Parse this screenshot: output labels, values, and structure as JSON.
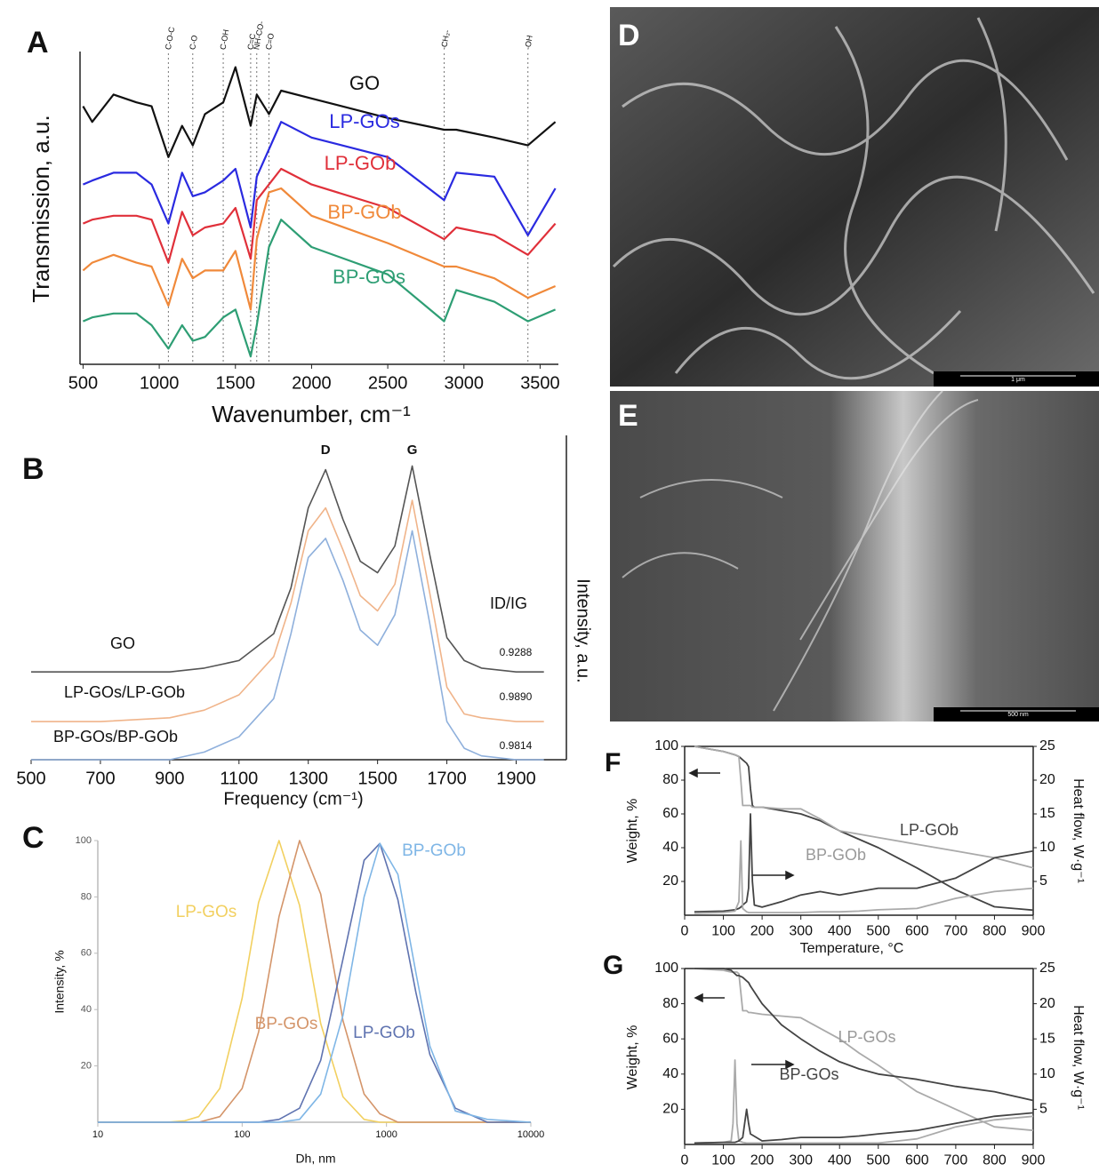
{
  "chart_data": [
    {
      "panel": "A",
      "type": "line",
      "xlabel": "Wavenumber, cm⁻¹",
      "ylabel": "Transmission, a.u.",
      "x": [
        500,
        560,
        700,
        850,
        950,
        1060,
        1150,
        1220,
        1300,
        1420,
        1500,
        1600,
        1640,
        1720,
        1800,
        2000,
        2500,
        2870,
        2950,
        3200,
        3420,
        3600
      ],
      "xlim": [
        480,
        3620
      ],
      "xticks": [
        500,
        1000,
        1500,
        2000,
        2500,
        3000,
        3500
      ],
      "ylim": [
        2,
        10
      ],
      "bands": [
        {
          "x": 1060,
          "label": "C-O-C"
        },
        {
          "x": 1220,
          "label": "C-O"
        },
        {
          "x": 1420,
          "label": "C-OH"
        },
        {
          "x": 1600,
          "label": "C=C"
        },
        {
          "x": 1640,
          "label": "NH-CO-"
        },
        {
          "x": 1720,
          "label": "C=O"
        },
        {
          "x": 2870,
          "label": "-CH₂-"
        },
        {
          "x": 3420,
          "label": "-OH"
        }
      ],
      "series": [
        {
          "name": "GO",
          "color": "#111111",
          "values": [
            8.6,
            8.2,
            8.9,
            8.7,
            8.6,
            7.3,
            8.1,
            7.6,
            8.4,
            8.7,
            9.6,
            8.1,
            8.9,
            8.4,
            9.0,
            8.8,
            8.3,
            8.0,
            8.0,
            7.8,
            7.6,
            8.2
          ]
        },
        {
          "name": "LP-GOs",
          "color": "#2a2ae0",
          "values": [
            6.6,
            6.7,
            6.9,
            6.9,
            6.6,
            5.6,
            6.9,
            6.3,
            6.4,
            6.7,
            7.0,
            5.5,
            6.8,
            7.5,
            8.2,
            7.8,
            7.3,
            6.2,
            6.9,
            6.8,
            5.3,
            6.5
          ]
        },
        {
          "name": "LP-GOb",
          "color": "#e0303a",
          "values": [
            5.6,
            5.7,
            5.8,
            5.8,
            5.7,
            4.6,
            5.9,
            5.3,
            5.5,
            5.6,
            6.0,
            4.7,
            6.2,
            6.6,
            7.0,
            6.6,
            6.0,
            5.2,
            5.5,
            5.3,
            4.8,
            5.6
          ]
        },
        {
          "name": "BP-GOb",
          "color": "#f0893a",
          "values": [
            4.4,
            4.6,
            4.8,
            4.6,
            4.5,
            3.5,
            4.7,
            4.2,
            4.4,
            4.4,
            4.9,
            3.4,
            5.2,
            6.4,
            6.5,
            5.8,
            5.1,
            4.5,
            4.5,
            4.2,
            3.7,
            4.0
          ]
        },
        {
          "name": "BP-GOs",
          "color": "#2e9e74",
          "values": [
            3.1,
            3.2,
            3.3,
            3.3,
            3.0,
            2.4,
            3.0,
            2.6,
            2.7,
            3.2,
            3.4,
            2.2,
            3.0,
            5.0,
            5.7,
            5.0,
            4.3,
            3.1,
            3.9,
            3.6,
            3.1,
            3.4
          ]
        }
      ]
    },
    {
      "panel": "B",
      "type": "line",
      "xlabel": "Frequency (cm⁻¹)",
      "ylabel": "Intensity, a.u.",
      "x": [
        500,
        700,
        900,
        1000,
        1100,
        1200,
        1250,
        1300,
        1350,
        1400,
        1450,
        1500,
        1550,
        1600,
        1650,
        1700,
        1750,
        1800,
        1900,
        1980
      ],
      "xlim": [
        500,
        2045
      ],
      "xticks": [
        500,
        700,
        900,
        1100,
        1300,
        1500,
        1700,
        1900
      ],
      "ylim": [
        0,
        8.5
      ],
      "peaks": [
        {
          "x": 1350,
          "label": "D"
        },
        {
          "x": 1600,
          "label": "G"
        }
      ],
      "ratio_label": "ID/IG",
      "series": [
        {
          "name": "GO",
          "color": "#555555",
          "ratio": 0.9288,
          "values": [
            2.3,
            2.3,
            2.3,
            2.4,
            2.6,
            3.3,
            4.5,
            6.6,
            7.6,
            6.3,
            5.2,
            4.9,
            5.6,
            7.7,
            5.4,
            3.2,
            2.6,
            2.4,
            2.3,
            2.3
          ]
        },
        {
          "name": "LP-GOs/LP-GOb",
          "color": "#f0b48a",
          "ratio": {
            "value": 0.989,
            "label": "0.9890"
          },
          "values": [
            1.0,
            1.0,
            1.1,
            1.3,
            1.7,
            2.7,
            4.1,
            6.0,
            6.6,
            5.5,
            4.3,
            3.9,
            4.6,
            6.8,
            4.4,
            1.9,
            1.2,
            1.1,
            1.0,
            1.0
          ]
        },
        {
          "name": "BP-GOs/BP-GOb",
          "color": "#8fb0dc",
          "ratio": 0.9814,
          "values": [
            0.0,
            0.0,
            0.0,
            0.2,
            0.6,
            1.6,
            3.3,
            5.3,
            5.8,
            4.7,
            3.4,
            3.0,
            3.8,
            6.0,
            3.6,
            1.0,
            0.3,
            0.1,
            0.0,
            0.0
          ]
        }
      ]
    },
    {
      "panel": "C",
      "type": "line",
      "xlabel": "Dh, nm",
      "ylabel": "Intensity, %",
      "xscale": "log",
      "x": [
        10,
        30,
        40,
        50,
        70,
        100,
        130,
        180,
        250,
        350,
        500,
        700,
        900,
        1200,
        1600,
        2000,
        3000,
        5000,
        10000
      ],
      "xlim": [
        10,
        10000
      ],
      "xticks": [
        10,
        100,
        1000,
        10000
      ],
      "ylim": [
        0,
        100
      ],
      "yticks": [
        20,
        40,
        60,
        80,
        100
      ],
      "series": [
        {
          "name": "LP-GOs",
          "color": "#f2d060",
          "values": [
            0,
            0,
            0.5,
            2,
            12,
            44,
            78,
            100,
            77,
            35,
            9,
            1,
            0,
            0,
            0,
            0,
            0,
            0,
            0
          ]
        },
        {
          "name": "BP-GOs",
          "color": "#d4956a",
          "values": [
            0,
            0,
            0,
            0,
            2,
            12,
            32,
            73,
            100,
            81,
            36,
            10,
            3,
            0,
            0,
            0,
            0,
            0,
            0
          ]
        },
        {
          "name": "LP-GOb",
          "color": "#5f73b0",
          "values": [
            0,
            0,
            0,
            0,
            0,
            0,
            0,
            1,
            5,
            22,
            58,
            93,
            99,
            79,
            46,
            24,
            5,
            0,
            0
          ]
        },
        {
          "name": "BP-GOb",
          "color": "#7fb6e6",
          "values": [
            0,
            0,
            0,
            0,
            0,
            0,
            0,
            0,
            1,
            10,
            38,
            80,
            99,
            88,
            53,
            27,
            4,
            1,
            0
          ]
        }
      ]
    },
    {
      "panel": "F",
      "type": "line",
      "xlabel": "Temperature, °C",
      "ylabel": "Weight, %",
      "y2label": "Heat flow, W·g⁻¹",
      "x": [
        25,
        100,
        130,
        140,
        145,
        150,
        160,
        165,
        170,
        175,
        180,
        200,
        250,
        300,
        350,
        400,
        450,
        500,
        600,
        700,
        800,
        900
      ],
      "xlim": [
        0,
        900
      ],
      "xticks": [
        0,
        100,
        200,
        300,
        400,
        500,
        600,
        700,
        800,
        900
      ],
      "ylim": [
        0,
        100
      ],
      "yticks": [
        20,
        40,
        60,
        80,
        100
      ],
      "y2lim": [
        0,
        25
      ],
      "y2ticks": [
        5,
        10,
        15,
        20,
        25
      ],
      "series": [
        {
          "name": "LP-GOb",
          "color": "#444444",
          "values": [
            100,
            97,
            95,
            94,
            93,
            92,
            90,
            88,
            75,
            65,
            64,
            64,
            62,
            60,
            56,
            50,
            45,
            40,
            28,
            15,
            5,
            3
          ]
        },
        {
          "name": "BP-GOb",
          "color": "#aaaaaa",
          "values": [
            100,
            97,
            95,
            94,
            80,
            65,
            65,
            65,
            65,
            64,
            64,
            64,
            63,
            63,
            57,
            50,
            48,
            46,
            42,
            38,
            34,
            28
          ]
        },
        {
          "axis": "y2",
          "color": "#444444",
          "values": [
            0.5,
            0.6,
            0.8,
            1,
            1.2,
            1.5,
            2,
            4,
            15,
            5,
            1.5,
            1.2,
            2,
            3,
            3.5,
            3,
            3.5,
            4,
            4,
            5.5,
            8.5,
            9.5
          ]
        },
        {
          "axis": "y2",
          "color": "#aaaaaa",
          "values": [
            0.3,
            0.4,
            0.6,
            2,
            11,
            1,
            0.5,
            0.4,
            0.4,
            0.4,
            0.4,
            0.4,
            0.4,
            0.4,
            0.5,
            0.5,
            0.6,
            0.8,
            1,
            2.5,
            3.5,
            4
          ]
        }
      ]
    },
    {
      "panel": "G",
      "type": "line",
      "ylabel": "Weight, %",
      "y2label": "Heat flow, W·g⁻¹",
      "x": [
        25,
        100,
        120,
        125,
        130,
        135,
        140,
        150,
        160,
        165,
        170,
        200,
        250,
        300,
        350,
        400,
        450,
        500,
        600,
        700,
        800,
        900
      ],
      "xlim": [
        0,
        900
      ],
      "xticks": [
        0,
        100,
        200,
        300,
        400,
        500,
        600,
        700,
        800,
        900
      ],
      "ylim": [
        0,
        100
      ],
      "yticks": [
        20,
        40,
        60,
        80,
        100
      ],
      "y2lim": [
        0,
        25
      ],
      "y2ticks": [
        5,
        10,
        15,
        20,
        25
      ],
      "series": [
        {
          "name": "LP-GOs",
          "color": "#aaaaaa",
          "values": [
            100,
            99,
            98,
            98,
            98,
            98,
            97,
            76,
            76,
            75,
            75,
            74,
            73,
            72,
            66,
            60,
            52,
            45,
            30,
            20,
            10,
            8
          ]
        },
        {
          "name": "BP-GOs",
          "color": "#444444",
          "values": [
            100,
            100,
            99,
            98,
            97,
            96,
            96,
            95,
            93,
            92,
            90,
            80,
            68,
            60,
            53,
            47,
            43,
            40,
            37,
            33,
            30,
            25
          ]
        },
        {
          "axis": "y2",
          "color": "#aaaaaa",
          "values": [
            0.2,
            0.3,
            0.5,
            3,
            12,
            3,
            0.5,
            0.3,
            0.2,
            0.2,
            0.2,
            0.2,
            0.2,
            0.2,
            0.2,
            0.2,
            0.2,
            0.2,
            0.8,
            2.5,
            3.5,
            4
          ]
        },
        {
          "axis": "y2",
          "color": "#444444",
          "values": [
            0.2,
            0.3,
            0.3,
            0.3,
            0.3,
            0.4,
            0.5,
            1,
            5,
            3,
            1.5,
            0.5,
            0.7,
            1,
            1,
            1,
            1.2,
            1.5,
            2,
            3,
            4,
            4.5
          ]
        }
      ]
    }
  ],
  "images": [
    {
      "panel": "D",
      "scale_bar": "1 μm"
    },
    {
      "panel": "E",
      "scale_bar": "500 nm"
    }
  ]
}
